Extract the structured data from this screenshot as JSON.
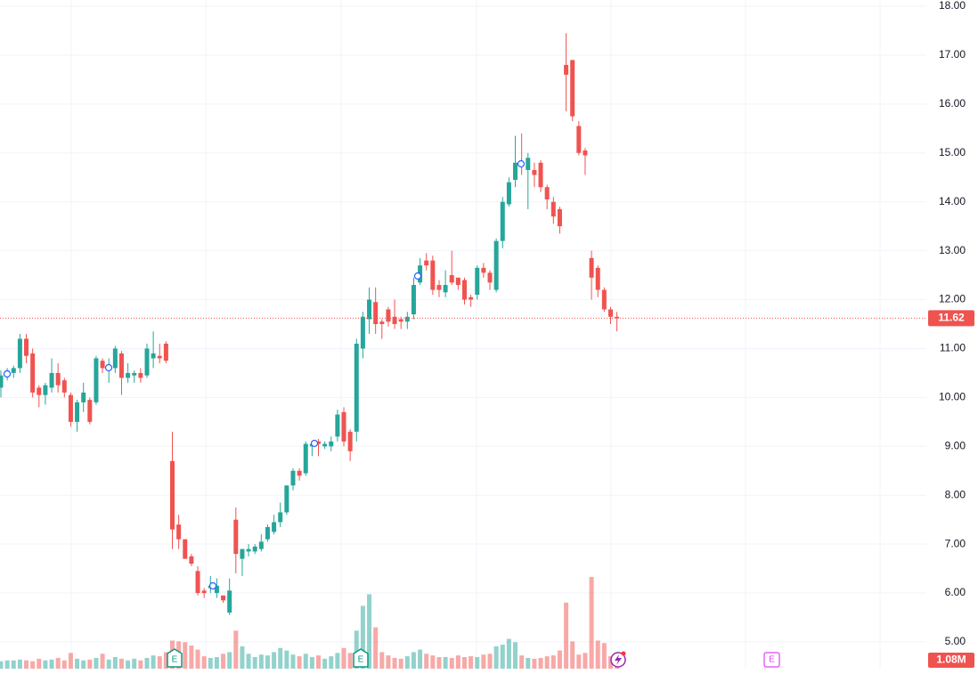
{
  "chart_data": {
    "type": "candlestick",
    "ylim": [
      5,
      18
    ],
    "yticks": [
      {
        "value": 5,
        "label": "5.00"
      },
      {
        "value": 6,
        "label": "6.00"
      },
      {
        "value": 7,
        "label": "7.00"
      },
      {
        "value": 8,
        "label": "8.00"
      },
      {
        "value": 9,
        "label": "9.00"
      },
      {
        "value": 10,
        "label": "10.00"
      },
      {
        "value": 11,
        "label": "11.00"
      },
      {
        "value": 12,
        "label": "12.00"
      },
      {
        "value": 13,
        "label": "13.00"
      },
      {
        "value": 14,
        "label": "14.00"
      },
      {
        "value": 15,
        "label": "15.00"
      },
      {
        "value": 16,
        "label": "16.00"
      },
      {
        "value": 17,
        "label": "17.00"
      },
      {
        "value": 18,
        "label": "18.00"
      }
    ],
    "grid": true,
    "up_color": "#26a69a",
    "down_color": "#ef5350",
    "open": [
      10.2,
      10.45,
      10.5,
      10.6,
      11.2,
      10.9,
      10.2,
      10.05,
      10.2,
      10.5,
      10.35,
      10.05,
      9.5,
      9.9,
      9.95,
      9.9,
      10.75,
      10.6,
      10.6,
      10.9,
      10.4,
      10.45,
      10.5,
      10.45,
      10.8,
      10.85,
      11.1,
      8.7,
      7.4,
      7.1,
      6.75,
      6.45,
      6.05,
      6.1,
      6.0,
      5.95,
      5.6,
      7.5,
      6.7,
      6.85,
      6.85,
      6.9,
      7.1,
      7.25,
      7.45,
      7.65,
      8.2,
      8.5,
      8.45,
      9.0,
      9.1,
      9.0,
      9.0,
      9.2,
      9.7,
      9.3,
      9.3,
      11.0,
      11.6,
      11.95,
      11.55,
      11.8,
      11.65,
      11.6,
      11.55,
      11.7,
      12.35,
      12.8,
      12.8,
      12.3,
      12.15,
      12.5,
      12.45,
      12.4,
      12.05,
      12.1,
      12.65,
      12.55,
      12.2,
      13.2,
      13.95,
      14.45,
      14.8,
      14.65,
      14.65,
      14.8,
      14.3,
      14.0,
      13.85,
      16.8,
      16.9,
      15.55,
      15.05,
      12.85,
      12.65,
      12.2,
      11.8,
      11.65
    ],
    "high": [
      10.55,
      10.6,
      10.65,
      11.3,
      11.3,
      11.0,
      10.25,
      10.3,
      10.8,
      10.7,
      10.4,
      10.1,
      9.95,
      10.3,
      10.0,
      10.85,
      10.8,
      10.8,
      11.05,
      10.95,
      10.7,
      10.55,
      10.6,
      11.1,
      11.35,
      11.1,
      11.15,
      9.3,
      7.6,
      7.1,
      6.8,
      6.55,
      6.1,
      6.35,
      6.3,
      5.95,
      6.3,
      7.75,
      6.9,
      7.0,
      7.0,
      7.2,
      7.4,
      7.6,
      7.85,
      8.2,
      8.55,
      8.55,
      9.1,
      9.1,
      9.15,
      9.1,
      9.2,
      9.75,
      9.8,
      9.35,
      11.2,
      11.75,
      12.25,
      12.25,
      11.6,
      11.85,
      12.0,
      11.65,
      11.75,
      12.45,
      12.85,
      12.95,
      12.9,
      12.4,
      12.6,
      13.0,
      12.45,
      12.45,
      12.1,
      12.7,
      12.75,
      12.6,
      13.25,
      14.1,
      14.5,
      15.35,
      15.4,
      15.0,
      14.8,
      14.85,
      14.35,
      14.1,
      13.9,
      17.45,
      16.9,
      15.65,
      15.1,
      13.0,
      12.7,
      12.25,
      11.85,
      11.75
    ],
    "low": [
      10.0,
      10.35,
      10.4,
      10.5,
      10.7,
      10.0,
      9.8,
      9.85,
      10.1,
      10.1,
      10.0,
      9.4,
      9.3,
      9.7,
      9.45,
      9.85,
      10.5,
      10.3,
      10.5,
      10.05,
      10.3,
      10.3,
      10.3,
      10.4,
      10.6,
      10.7,
      10.7,
      6.9,
      6.9,
      6.7,
      6.55,
      5.95,
      5.9,
      6.0,
      5.9,
      5.8,
      5.55,
      6.4,
      6.35,
      6.75,
      6.8,
      6.85,
      7.05,
      7.2,
      7.35,
      7.6,
      8.1,
      8.3,
      8.4,
      8.8,
      8.8,
      8.95,
      8.9,
      9.1,
      9.0,
      8.7,
      9.1,
      10.8,
      11.3,
      11.3,
      11.2,
      11.45,
      11.4,
      11.4,
      11.4,
      11.6,
      12.3,
      12.6,
      12.1,
      12.05,
      12.05,
      12.3,
      12.2,
      11.9,
      11.85,
      12.0,
      12.45,
      12.2,
      12.15,
      13.05,
      13.9,
      14.3,
      14.55,
      13.85,
      14.3,
      14.2,
      13.85,
      13.55,
      13.35,
      15.85,
      15.65,
      14.95,
      14.55,
      12.0,
      12.05,
      11.75,
      11.5,
      11.35
    ],
    "close": [
      10.45,
      10.55,
      10.6,
      11.2,
      10.85,
      10.1,
      10.05,
      10.25,
      10.5,
      10.25,
      10.1,
      9.5,
      9.9,
      10.1,
      9.5,
      10.8,
      10.6,
      10.65,
      11.0,
      10.4,
      10.5,
      10.5,
      10.4,
      11.0,
      10.9,
      10.8,
      10.75,
      7.3,
      7.1,
      6.7,
      6.6,
      6.0,
      6.0,
      6.15,
      6.15,
      5.85,
      6.05,
      6.8,
      6.9,
      6.9,
      6.95,
      7.05,
      7.35,
      7.45,
      7.65,
      8.2,
      8.5,
      8.4,
      9.05,
      9.05,
      9.05,
      9.05,
      9.1,
      9.65,
      9.1,
      8.9,
      11.1,
      11.65,
      12.0,
      11.5,
      11.5,
      11.55,
      11.5,
      11.55,
      11.65,
      12.3,
      12.7,
      12.7,
      12.2,
      12.2,
      12.3,
      12.35,
      12.3,
      12.0,
      12.0,
      12.65,
      12.55,
      12.35,
      13.2,
      14.0,
      14.4,
      14.8,
      14.75,
      14.9,
      14.55,
      14.3,
      14.05,
      13.7,
      13.5,
      16.6,
      15.75,
      15.0,
      14.95,
      12.45,
      12.2,
      11.8,
      11.65,
      11.62
    ],
    "volume": [
      0.9,
      1.0,
      1.0,
      1.1,
      1.0,
      0.9,
      1.2,
      1.0,
      1.1,
      1.3,
      1.0,
      1.9,
      1.2,
      1.0,
      1.1,
      1.3,
      1.8,
      1.1,
      1.4,
      1.2,
      1.0,
      1.2,
      1.0,
      1.3,
      1.6,
      1.5,
      2.0,
      3.4,
      3.3,
      3.2,
      2.8,
      2.3,
      1.5,
      1.3,
      1.4,
      1.8,
      2.0,
      4.6,
      2.7,
      1.8,
      1.4,
      1.7,
      1.6,
      2.0,
      2.5,
      2.2,
      1.7,
      1.5,
      1.8,
      1.4,
      1.6,
      1.2,
      1.5,
      1.9,
      2.5,
      1.9,
      4.6,
      7.6,
      9.0,
      5.0,
      2.0,
      1.6,
      1.3,
      1.2,
      1.5,
      2.0,
      2.3,
      1.8,
      1.6,
      1.4,
      1.4,
      1.3,
      1.6,
      1.4,
      1.5,
      1.4,
      1.7,
      1.8,
      2.7,
      2.9,
      3.6,
      3.2,
      1.6,
      1.3,
      1.2,
      1.3,
      1.5,
      1.6,
      2.2,
      8.0,
      3.3,
      1.7,
      1.9,
      11.1,
      3.4,
      3.1,
      1.5,
      1.08
    ],
    "last_price": {
      "value": 11.62,
      "label": "11.62"
    },
    "volume_label": {
      "value": 1.08,
      "label": "1.08M"
    },
    "earnings_markers": [
      "E",
      "E",
      "E"
    ]
  }
}
